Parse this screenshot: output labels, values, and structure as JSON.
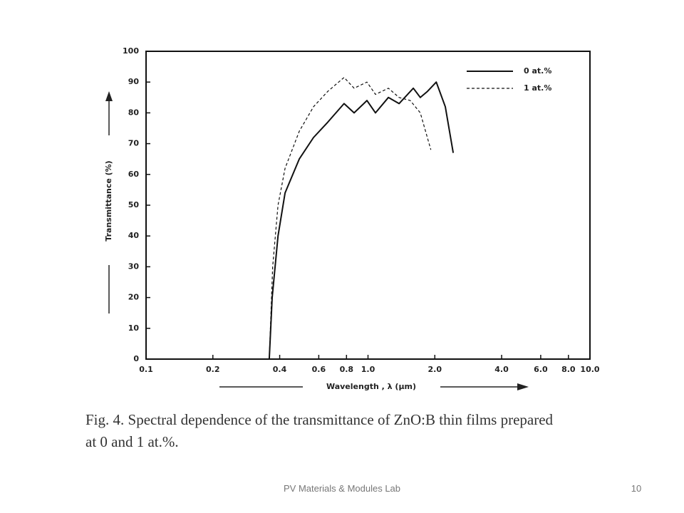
{
  "chart_data": {
    "type": "line",
    "x_label": "Wavelength , λ (μm)",
    "y_label": "Transmittance (%)",
    "log_x": true,
    "xlim": [
      0.1,
      10
    ],
    "ylim": [
      0,
      100
    ],
    "xticks": [
      0.1,
      0.2,
      0.4,
      0.6,
      0.8,
      {
        "value": 1,
        "label": "1.0"
      },
      {
        "value": 2,
        "label": "2.0"
      },
      {
        "value": 4,
        "label": "4.0"
      },
      {
        "value": 6,
        "label": "6.0"
      },
      {
        "value": 8,
        "label": "8.0"
      },
      {
        "value": 10,
        "label": "10.0"
      }
    ],
    "yticks": [
      0,
      10,
      20,
      30,
      40,
      50,
      60,
      70,
      80,
      90,
      100
    ],
    "legend": "upper right",
    "series": [
      {
        "name": "0 at.%",
        "color": "#111111",
        "style": "solid",
        "x": [
          0.359,
          0.37,
          0.393,
          0.423,
          0.49,
          0.568,
          0.659,
          0.78,
          0.866,
          0.989,
          1.081,
          1.235,
          1.38,
          1.6,
          1.721,
          1.854,
          2.03,
          2.23,
          2.42
        ],
        "values": [
          0,
          20,
          40,
          54,
          65,
          72,
          77,
          83,
          80,
          84,
          80,
          85,
          83,
          88,
          85,
          87,
          90,
          82,
          67
        ]
      },
      {
        "name": "1 at.%",
        "color": "#111111",
        "style": "dashed",
        "x": [
          0.359,
          0.372,
          0.393,
          0.423,
          0.49,
          0.568,
          0.659,
          0.78,
          0.866,
          0.989,
          1.081,
          1.235,
          1.38,
          1.55,
          1.721,
          1.92
        ],
        "values": [
          0,
          30,
          50,
          62,
          74,
          82,
          87,
          91.5,
          88,
          90,
          86,
          88,
          85,
          84,
          80,
          68
        ]
      }
    ]
  },
  "caption": [
    "Fig. 4. Spectral dependence of the transmittance of ZnO:B thin films prepared",
    "at 0 and 1 at.%."
  ],
  "footer": "PV Materials & Modules Lab",
  "page_number": "10"
}
